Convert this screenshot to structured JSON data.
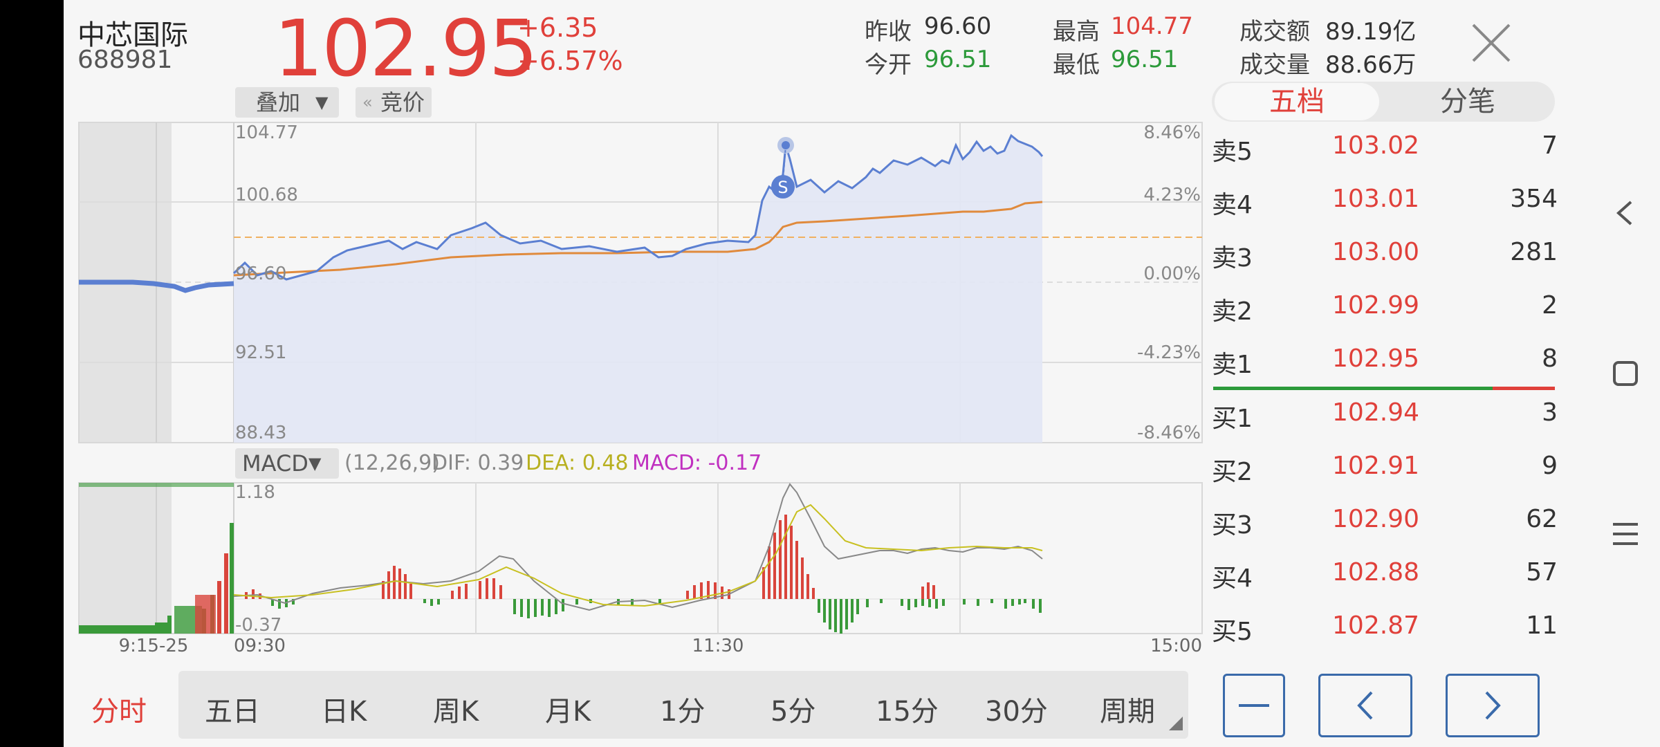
{
  "stock": {
    "name": "中芯国际",
    "code": "688981",
    "price": "102.95",
    "change": "+6.35",
    "change_pct": "+6.57%"
  },
  "stats": {
    "prev_close_label": "昨收",
    "prev_close": "96.60",
    "open_label": "今开",
    "open": "96.51",
    "high_label": "最高",
    "high": "104.77",
    "low_label": "最低",
    "low": "96.51",
    "turnover_label": "成交额",
    "turnover": "89.19亿",
    "volume_label": "成交量",
    "volume": "88.66万"
  },
  "controls": {
    "overlay_label": "叠加",
    "auction_label": "竞价",
    "indicator_label": "MACD",
    "indicator_params": "(12,26,9)",
    "dif": "DIF: 0.39",
    "dea": "DEA: 0.48",
    "macd": "MACD: -0.17"
  },
  "panel_tabs": [
    "五档",
    "分笔"
  ],
  "order_book": {
    "asks": [
      {
        "label": "卖5",
        "price": "103.02",
        "volume": "7"
      },
      {
        "label": "卖4",
        "price": "103.01",
        "volume": "354"
      },
      {
        "label": "卖3",
        "price": "103.00",
        "volume": "281"
      },
      {
        "label": "卖2",
        "price": "102.99",
        "volume": "2"
      },
      {
        "label": "卖1",
        "price": "102.95",
        "volume": "8"
      }
    ],
    "bids": [
      {
        "label": "买1",
        "price": "102.94",
        "volume": "3"
      },
      {
        "label": "买2",
        "price": "102.91",
        "volume": "9"
      },
      {
        "label": "买3",
        "price": "102.90",
        "volume": "62"
      },
      {
        "label": "买4",
        "price": "102.88",
        "volume": "57"
      },
      {
        "label": "买5",
        "price": "102.87",
        "volume": "11"
      }
    ]
  },
  "periods": [
    "分时",
    "五日",
    "日K",
    "周K",
    "月K",
    "1分",
    "5分",
    "15分",
    "30分",
    "周期"
  ],
  "chart_data": {
    "type": "line",
    "price_axis": [
      "104.77",
      "100.68",
      "96.60",
      "92.51",
      "88.43"
    ],
    "pct_axis": [
      "8.46%",
      "4.23%",
      "0.00%",
      "-4.23%",
      "-8.46%"
    ],
    "time_labels": [
      "9:15-25",
      "09:30",
      "11:30",
      "15:00"
    ],
    "macd_axis": [
      "1.18",
      "-0.37"
    ],
    "trade_marker": "S",
    "colors": {
      "price": "#5b7fd1",
      "avg": "#e08a3c",
      "up": "#d9453c",
      "down": "#3a9a3a",
      "dea": "#c8c020"
    }
  },
  "icons": {
    "close": "close-icon",
    "back": "back-icon",
    "home": "home-icon",
    "menu": "menu-icon"
  }
}
